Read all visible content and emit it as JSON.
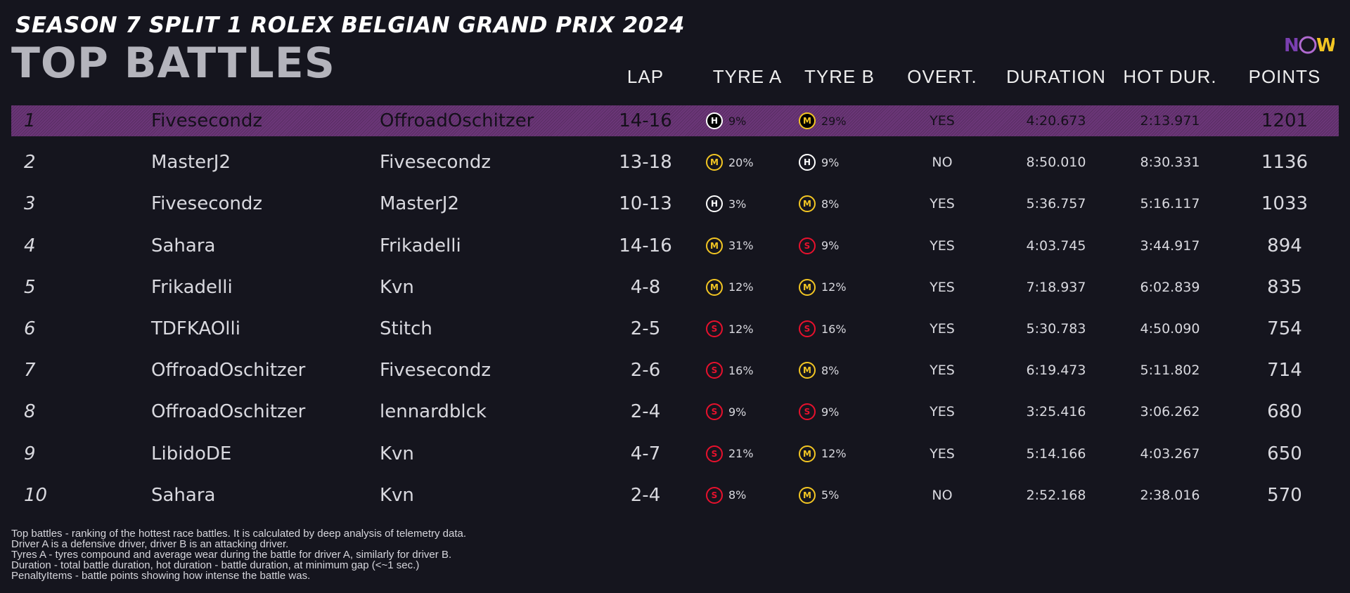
{
  "header": {
    "season_title": "SEASON 7 SPLIT 1 ROLEX BELGIAN GRAND PRIX 2024",
    "main_title": "TOP BATTLES",
    "logo_text": "NOW"
  },
  "columns": {
    "lap": "LAP",
    "tyre_a": "TYRE A",
    "tyre_b": "TYRE B",
    "overtake": "OVERT.",
    "duration": "DURATION",
    "hot_duration": "HOT DUR.",
    "points": "POINTS"
  },
  "colors": {
    "hard": "#ffffff",
    "medium": "#f3c623",
    "soft": "#e8112d",
    "highlight": "#6b3678",
    "background": "#15151e"
  },
  "battles": [
    {
      "pos": "1",
      "driver_a": "Fivesecondz",
      "driver_b": "OffroadOschitzer",
      "lap": "14-16",
      "tyre_a": {
        "compound": "H",
        "wear": "9%"
      },
      "tyre_b": {
        "compound": "M",
        "wear": "29%"
      },
      "overtake": "YES",
      "duration": "4:20.673",
      "hot_duration": "2:13.971",
      "points": "1201"
    },
    {
      "pos": "2",
      "driver_a": "MasterJ2",
      "driver_b": "Fivesecondz",
      "lap": "13-18",
      "tyre_a": {
        "compound": "M",
        "wear": "20%"
      },
      "tyre_b": {
        "compound": "H",
        "wear": "9%"
      },
      "overtake": "NO",
      "duration": "8:50.010",
      "hot_duration": "8:30.331",
      "points": "1136"
    },
    {
      "pos": "3",
      "driver_a": "Fivesecondz",
      "driver_b": "MasterJ2",
      "lap": "10-13",
      "tyre_a": {
        "compound": "H",
        "wear": "3%"
      },
      "tyre_b": {
        "compound": "M",
        "wear": "8%"
      },
      "overtake": "YES",
      "duration": "5:36.757",
      "hot_duration": "5:16.117",
      "points": "1033"
    },
    {
      "pos": "4",
      "driver_a": "Sahara",
      "driver_b": "Frikadelli",
      "lap": "14-16",
      "tyre_a": {
        "compound": "M",
        "wear": "31%"
      },
      "tyre_b": {
        "compound": "S",
        "wear": "9%"
      },
      "overtake": "YES",
      "duration": "4:03.745",
      "hot_duration": "3:44.917",
      "points": "894"
    },
    {
      "pos": "5",
      "driver_a": "Frikadelli",
      "driver_b": "Kvn",
      "lap": "4-8",
      "tyre_a": {
        "compound": "M",
        "wear": "12%"
      },
      "tyre_b": {
        "compound": "M",
        "wear": "12%"
      },
      "overtake": "YES",
      "duration": "7:18.937",
      "hot_duration": "6:02.839",
      "points": "835"
    },
    {
      "pos": "6",
      "driver_a": "TDFKAOlli",
      "driver_b": "Stitch",
      "lap": "2-5",
      "tyre_a": {
        "compound": "S",
        "wear": "12%"
      },
      "tyre_b": {
        "compound": "S",
        "wear": "16%"
      },
      "overtake": "YES",
      "duration": "5:30.783",
      "hot_duration": "4:50.090",
      "points": "754"
    },
    {
      "pos": "7",
      "driver_a": "OffroadOschitzer",
      "driver_b": "Fivesecondz",
      "lap": "2-6",
      "tyre_a": {
        "compound": "S",
        "wear": "16%"
      },
      "tyre_b": {
        "compound": "M",
        "wear": "8%"
      },
      "overtake": "YES",
      "duration": "6:19.473",
      "hot_duration": "5:11.802",
      "points": "714"
    },
    {
      "pos": "8",
      "driver_a": "OffroadOschitzer",
      "driver_b": "lennardblck",
      "lap": "2-4",
      "tyre_a": {
        "compound": "S",
        "wear": "9%"
      },
      "tyre_b": {
        "compound": "S",
        "wear": "9%"
      },
      "overtake": "YES",
      "duration": "3:25.416",
      "hot_duration": "3:06.262",
      "points": "680"
    },
    {
      "pos": "9",
      "driver_a": "LibidoDE",
      "driver_b": "Kvn",
      "lap": "4-7",
      "tyre_a": {
        "compound": "S",
        "wear": "21%"
      },
      "tyre_b": {
        "compound": "M",
        "wear": "12%"
      },
      "overtake": "YES",
      "duration": "5:14.166",
      "hot_duration": "4:03.267",
      "points": "650"
    },
    {
      "pos": "10",
      "driver_a": "Sahara",
      "driver_b": "Kvn",
      "lap": "2-4",
      "tyre_a": {
        "compound": "S",
        "wear": "8%"
      },
      "tyre_b": {
        "compound": "M",
        "wear": "5%"
      },
      "overtake": "NO",
      "duration": "2:52.168",
      "hot_duration": "2:38.016",
      "points": "570"
    }
  ],
  "footer": [
    "Top battles - ranking of the hottest race battles. It is calculated by deep analysis of telemetry data.",
    "Driver A is a defensive driver, driver B is an attacking driver.",
    "Tyres A - tyres compound and average wear during the battle for driver A, similarly for driver B.",
    "Duration - total battle duration, hot duration - battle duration, at minimum gap (<~1 sec.)",
    "PenaltyItems - battle points showing how intense the battle was."
  ]
}
